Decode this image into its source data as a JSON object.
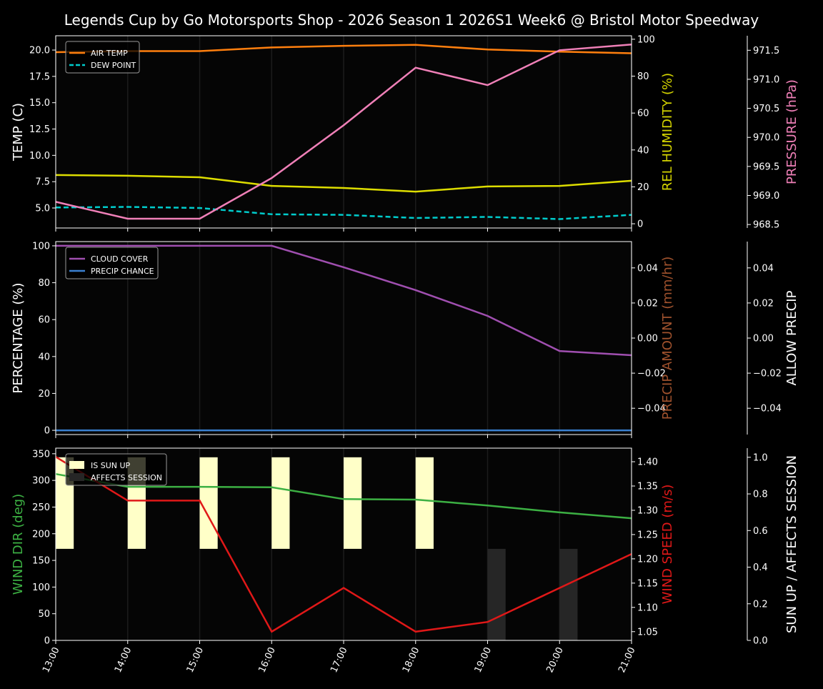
{
  "chart_data": {
    "type": "line",
    "title": "Legends Cup by Go Motorsports Shop - 2026 Season 1 2026S1 Week6 @ Bristol Motor Speedway",
    "x": [
      13,
      14,
      15,
      16,
      17,
      18,
      19,
      20,
      21
    ],
    "x_tick_labels": [
      "13:00",
      "14:00",
      "15:00",
      "16:00",
      "17:00",
      "18:00",
      "19:00",
      "20:00",
      "21:00"
    ],
    "panels": [
      {
        "axes": {
          "temp": {
            "side": "left",
            "label": "TEMP (C)",
            "color": "#ffffff",
            "ylim": [
              3.1,
              21.36
            ],
            "ticks": [
              "5.0",
              "7.5",
              "10.0",
              "12.5",
              "15.0",
              "17.5",
              "20.0"
            ]
          },
          "hum": {
            "side": "right",
            "label": "REL HUMIDITY (%)",
            "color": "#d4d400",
            "ylim": [
              -2.3,
              101.9
            ],
            "ticks": [
              "0",
              "20",
              "40",
              "60",
              "80",
              "100"
            ]
          },
          "pres": {
            "side": "far",
            "label": "PRESSURE (hPa)",
            "color": "#f080b8",
            "ylim": [
              968.44,
              971.75
            ],
            "ticks": [
              "968.5",
              "969.0",
              "969.5",
              "970.0",
              "970.5",
              "971.0",
              "971.5"
            ]
          }
        },
        "series": [
          {
            "name": "AIR TEMP",
            "axis": "temp",
            "color": "#ff7f0e",
            "legend": true,
            "values": [
              19.8,
              19.9,
              19.9,
              20.25,
              20.4,
              20.5,
              20.05,
              19.85,
              19.7
            ]
          },
          {
            "name": "DEW POINT",
            "axis": "temp",
            "color": "#00cccc",
            "dash": true,
            "legend": true,
            "values": [
              5.05,
              5.1,
              5.0,
              4.4,
              4.35,
              4.05,
              4.15,
              3.95,
              4.35
            ]
          },
          {
            "name": "REL HUMIDITY",
            "axis": "hum",
            "color": "#dddd00",
            "legend": false,
            "values": [
              26.4,
              26.0,
              25.2,
              20.5,
              19.4,
              17.4,
              20.2,
              20.5,
              23.3
            ]
          },
          {
            "name": "PRESSURE",
            "axis": "pres",
            "color": "#f080b8",
            "legend": false,
            "values": [
              968.89,
              968.6,
              968.6,
              969.3,
              970.21,
              971.2,
              970.9,
              971.5,
              971.6
            ]
          }
        ]
      },
      {
        "axes": {
          "pct": {
            "side": "left",
            "label": "PERCENTAGE (%)",
            "color": "#ffffff",
            "ylim": [
              -2.3,
              102.3
            ],
            "ticks": [
              "0",
              "20",
              "40",
              "60",
              "80",
              "100"
            ]
          },
          "amt": {
            "side": "right",
            "label": "PRECIP AMOUNT (mm/hr)",
            "color": "#a0522d",
            "ylim": [
              -0.055,
              0.055
            ],
            "ticks": [
              "−0.04",
              "−0.02",
              "0.00",
              "0.02",
              "0.04"
            ]
          },
          "allow": {
            "side": "far",
            "label": "ALLOW PRECIP",
            "color": "#ffffff",
            "ylim": [
              -0.055,
              0.055
            ],
            "ticks": [
              "−0.04",
              "−0.02",
              "0.00",
              "0.02",
              "0.04"
            ]
          }
        },
        "series": [
          {
            "name": "CLOUD COVER",
            "axis": "pct",
            "color": "#a04fb0",
            "legend": true,
            "values": [
              100,
              100,
              100,
              100,
              88.4,
              76,
              62,
              43,
              40.7
            ]
          },
          {
            "name": "PRECIP CHANCE",
            "axis": "pct",
            "color": "#3a80d0",
            "legend": true,
            "values": [
              0,
              0,
              0,
              0,
              0,
              0,
              0,
              0,
              0
            ]
          }
        ]
      },
      {
        "axes": {
          "dir": {
            "side": "left",
            "label": "WIND DIR (deg)",
            "color": "#3cb043",
            "ylim": [
              0,
              360.5
            ],
            "ticks": [
              "0",
              "50",
              "100",
              "150",
              "200",
              "250",
              "300",
              "350"
            ]
          },
          "spd": {
            "side": "right",
            "label": "WIND SPEED (m/s)",
            "color": "#e01818",
            "ylim": [
              1.032,
              1.428
            ],
            "ticks": [
              "1.05",
              "1.10",
              "1.15",
              "1.20",
              "1.25",
              "1.30",
              "1.35",
              "1.40"
            ]
          },
          "sun": {
            "side": "far",
            "label": "SUN UP / AFFECTS SESSION",
            "color": "#ffffff",
            "ylim": [
              0,
              1.05
            ],
            "ticks": [
              "0.0",
              "0.2",
              "0.4",
              "0.6",
              "0.8",
              "1.0"
            ]
          }
        },
        "series": [
          {
            "name": "IS SUN UP",
            "axis": "sun",
            "type": "bar",
            "color": "#ffffc8",
            "legend": true,
            "base": 0.5,
            "height": 0.5,
            "values": [
              1,
              1,
              1,
              1,
              1,
              1,
              0,
              0,
              0
            ]
          },
          {
            "name": "AFFECTS SESSION",
            "axis": "sun",
            "type": "bar",
            "color": "#262626",
            "legend": true,
            "base": 0,
            "height": 0.5,
            "values": [
              0,
              0,
              0,
              0,
              0,
              0,
              1,
              1,
              0
            ]
          },
          {
            "name": "WIND DIR",
            "axis": "dir",
            "color": "#3cb043",
            "legend": false,
            "values": [
              312,
              288,
              288,
              287,
              265,
              264,
              253,
              240,
              229
            ]
          },
          {
            "name": "WIND SPEED",
            "axis": "spd",
            "color": "#e01818",
            "legend": false,
            "values": [
              1.41,
              1.32,
              1.32,
              1.05,
              1.14,
              1.05,
              1.07,
              1.14,
              1.21
            ]
          }
        ]
      }
    ]
  }
}
